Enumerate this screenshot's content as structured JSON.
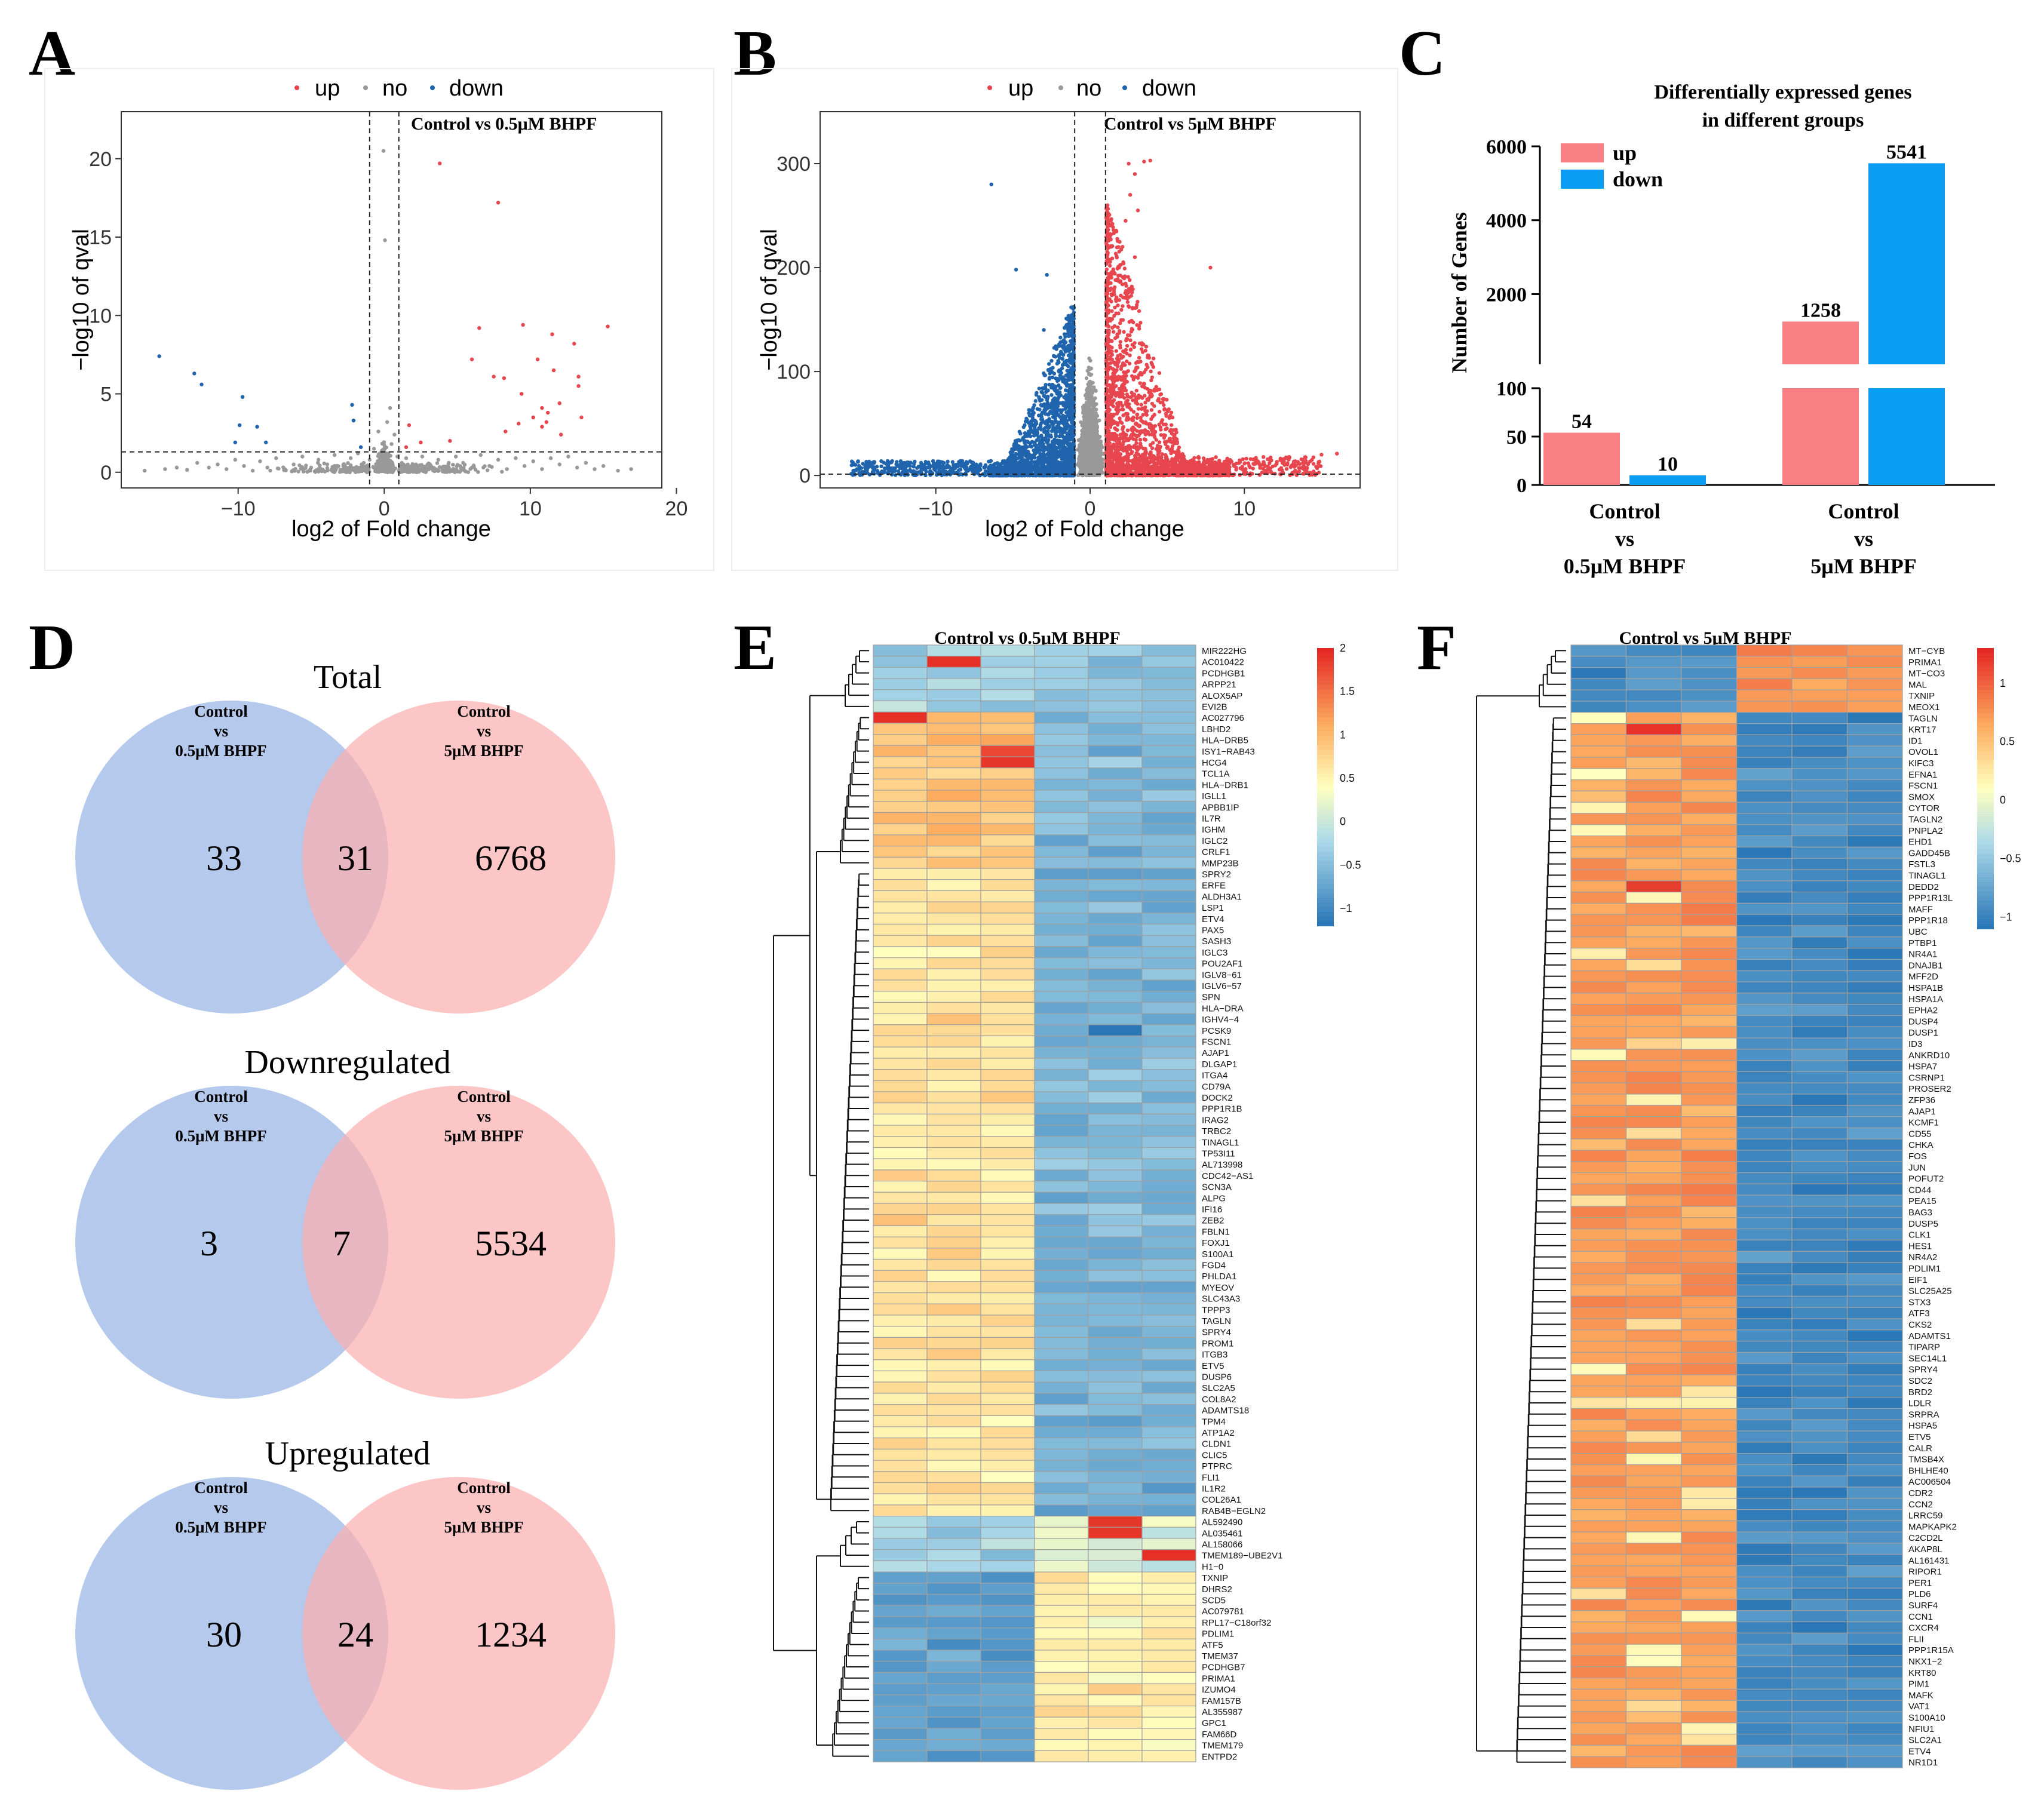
{
  "panel_letters": [
    "A",
    "B",
    "C",
    "D",
    "E",
    "F"
  ],
  "colors": {
    "up": "#e8464f",
    "no": "#999999",
    "down": "#1f64ad",
    "venn_left": "#a4bde6",
    "venn_right": "#fcaeae",
    "bar_up": "#f88084",
    "bar_down": "#0b9cf4"
  },
  "chart_data": [
    {
      "type": "scatter",
      "panel": "A",
      "title": "Control vs 0.5μM BHPF",
      "xlabel": "log2 of Fold change",
      "ylabel": "−log10 of qval",
      "xlim": [
        -18,
        19
      ],
      "ylim": [
        -1,
        23
      ],
      "xticks": [
        "−10",
        "0",
        "10",
        "20"
      ],
      "yticks": [
        "0",
        "5",
        "10",
        "15",
        "20"
      ],
      "thresholds": {
        "x": [
          -1,
          1
        ],
        "y": 1.3
      },
      "legend": [
        "up",
        "no",
        "down"
      ],
      "series": [
        {
          "name": "up",
          "points": [
            [
              3.8,
              19.7
            ],
            [
              7.8,
              17.2
            ],
            [
              15.3,
              9.3
            ],
            [
              9.5,
              9.4
            ],
            [
              11.5,
              8.8
            ],
            [
              6.5,
              9.2
            ],
            [
              13,
              8.2
            ],
            [
              10.5,
              7.2
            ],
            [
              6,
              7.2
            ],
            [
              11.6,
              6.5
            ],
            [
              13.3,
              6.1
            ],
            [
              13.3,
              5.5
            ],
            [
              7.5,
              6.1
            ],
            [
              8.2,
              6
            ],
            [
              9.4,
              5
            ],
            [
              12,
              4.4
            ],
            [
              10.8,
              4.1
            ],
            [
              11.2,
              3.8
            ],
            [
              10.2,
              3.5
            ],
            [
              13.5,
              3.5
            ],
            [
              11.1,
              3.2
            ],
            [
              9.2,
              3.1
            ],
            [
              10.8,
              2.9
            ],
            [
              8.3,
              2.6
            ],
            [
              12.1,
              2.4
            ],
            [
              1.7,
              3
            ],
            [
              2.5,
              1.9
            ],
            [
              4.5,
              2
            ],
            [
              1.5,
              1.6
            ]
          ]
        },
        {
          "name": "down",
          "points": [
            [
              -15.4,
              7.4
            ],
            [
              -13,
              6.3
            ],
            [
              -12.5,
              5.6
            ],
            [
              -9.7,
              4.8
            ],
            [
              -9.9,
              3
            ],
            [
              -8.7,
              2.9
            ],
            [
              -8.1,
              1.9
            ],
            [
              -10.2,
              1.9
            ],
            [
              -2.2,
              4.3
            ],
            [
              -2.1,
              3.3
            ],
            [
              -1.6,
              1.6
            ]
          ]
        },
        {
          "name": "no",
          "points": [
            [
              -16.4,
              0.1
            ],
            [
              -15,
              0.2
            ],
            [
              -14.2,
              0.3
            ],
            [
              -13.5,
              0.15
            ],
            [
              -12.8,
              0.6
            ],
            [
              -12,
              0.3
            ],
            [
              -11.4,
              0.5
            ],
            [
              -10.8,
              0.2
            ],
            [
              -10.2,
              0.8
            ],
            [
              -9.6,
              0.4
            ],
            [
              -9,
              0.1
            ],
            [
              -8.5,
              0.7
            ],
            [
              -8,
              0.3
            ],
            [
              -7.4,
              0.9
            ],
            [
              -6.8,
              0.2
            ],
            [
              -6.2,
              0.5
            ],
            [
              -5.6,
              1
            ],
            [
              -5,
              0.3
            ],
            [
              -4.5,
              0.8
            ],
            [
              -3.9,
              0.5
            ],
            [
              -3.4,
              1.1
            ],
            [
              -2.8,
              0.4
            ],
            [
              -2.3,
              0.9
            ],
            [
              -1.8,
              1.2
            ],
            [
              -1.4,
              0.6
            ],
            [
              -1,
              0.8
            ],
            [
              -0.7,
              1.5
            ],
            [
              -0.4,
              2.6
            ],
            [
              -0.2,
              1
            ],
            [
              0,
              0.5
            ],
            [
              0.2,
              3.2
            ],
            [
              0.4,
              4.1
            ],
            [
              0.5,
              1.8
            ],
            [
              0.7,
              2.4
            ],
            [
              0.9,
              1
            ],
            [
              1.2,
              0.6
            ],
            [
              1.5,
              0.9
            ],
            [
              2,
              0.3
            ],
            [
              2.6,
              1
            ],
            [
              3.1,
              0.5
            ],
            [
              3.7,
              0.8
            ],
            [
              4.3,
              0.2
            ],
            [
              4.9,
              1
            ],
            [
              5.4,
              0.6
            ],
            [
              6,
              0.3
            ],
            [
              6.6,
              1.1
            ],
            [
              7.2,
              0.4
            ],
            [
              7.8,
              0.8
            ],
            [
              8.4,
              0.2
            ],
            [
              9,
              0.9
            ],
            [
              9.6,
              0.4
            ],
            [
              10.2,
              0.7
            ],
            [
              10.8,
              0.2
            ],
            [
              11.4,
              0.9
            ],
            [
              12,
              0.5
            ],
            [
              12.6,
              1
            ],
            [
              13.2,
              0.3
            ],
            [
              13.8,
              0.6
            ],
            [
              14.4,
              0.2
            ],
            [
              15,
              0.4
            ],
            [
              16,
              0.1
            ],
            [
              16.9,
              0.2
            ],
            [
              -0.05,
              20.5
            ],
            [
              0.05,
              14.8
            ]
          ]
        }
      ]
    },
    {
      "type": "scatter",
      "panel": "B",
      "title": "Control  vs 5μM BHPF",
      "xlabel": "log2 of Fold change",
      "ylabel": "−log10 of qval",
      "xlim": [
        -17.5,
        17.5
      ],
      "ylim": [
        -12,
        350
      ],
      "xticks": [
        "−10",
        "0",
        "10"
      ],
      "yticks": [
        "0",
        "100",
        "200",
        "300"
      ],
      "thresholds": {
        "x": [
          -1,
          1
        ],
        "y": 1.3
      },
      "legend": [
        "up",
        "no",
        "down"
      ],
      "summary": "dense clouds of up- and down-regulated genes",
      "series": [
        {
          "name": "up",
          "points": [
            [
              2.5,
              300
            ],
            [
              3.9,
              303
            ],
            [
              3.5,
              302
            ],
            [
              2.9,
              290
            ],
            [
              2.6,
              270
            ],
            [
              3.1,
              255
            ],
            [
              7.8,
              200
            ],
            [
              2.3,
              245
            ],
            [
              2.1,
              220
            ],
            [
              2.9,
              210
            ],
            [
              15,
              20
            ],
            [
              16,
              21
            ],
            [
              13,
              8
            ]
          ]
        },
        {
          "name": "down",
          "points": [
            [
              -6.4,
              280
            ],
            [
              -4.8,
              198
            ],
            [
              -2.8,
              193
            ],
            [
              -14.2,
              12
            ],
            [
              -12.5,
              10
            ],
            [
              -3,
              140
            ]
          ]
        }
      ]
    },
    {
      "type": "bar",
      "panel": "C",
      "title": "Differentially expressed genes in different groups",
      "title_lines": [
        "Differentially expressed genes",
        "in different groups"
      ],
      "ylabel": "Number of Genes",
      "categories": [
        "Control vs 0.5μM BHPF",
        "Control vs 5μM BHPF"
      ],
      "category_lines": [
        [
          "Control",
          "vs",
          "0.5μM BHPF"
        ],
        [
          "Control",
          "vs",
          "5μM BHPF"
        ]
      ],
      "series": [
        {
          "name": "up",
          "values": [
            54,
            1258
          ]
        },
        {
          "name": "down",
          "values": [
            10,
            5541
          ]
        }
      ],
      "value_labels": [
        "54",
        "10",
        "1258",
        "5541"
      ],
      "axis_break": {
        "lower_range": [
          0,
          100
        ],
        "upper_range": [
          100,
          6000
        ]
      },
      "yticks_lower": [
        "0",
        "50",
        "100"
      ],
      "yticks_upper": [
        "2000",
        "4000",
        "6000"
      ]
    },
    {
      "type": "venn",
      "panel": "D",
      "sets": [
        "Control vs 0.5μM BHPF",
        "Control vs 5μM BHPF"
      ],
      "set_label_lines": [
        [
          "Control",
          "vs",
          "0.5μM BHPF"
        ],
        [
          "Control",
          "vs",
          "5μM BHPF"
        ]
      ],
      "diagrams": [
        {
          "title": "Total",
          "left_only": "33",
          "overlap": "31",
          "right_only": "6768"
        },
        {
          "title": "Downregulated",
          "left_only": "3",
          "overlap": "7",
          "right_only": "5534"
        },
        {
          "title": "Upregulated",
          "left_only": "30",
          "overlap": "24",
          "right_only": "1234"
        }
      ]
    },
    {
      "type": "heatmap",
      "panel": "E",
      "title": "Control vs 0.5μM BHPF",
      "columns": 6,
      "colorbar_ticks": [
        "2",
        "1.5",
        "1",
        "0.5",
        "0",
        "−0.5",
        "−1"
      ],
      "colorbar_range": [
        -1.2,
        2
      ],
      "genes": [
        "MIR222HG",
        "AC010422",
        "PCDHGB1",
        "ARPP21",
        "ALOX5AP",
        "EVI2B",
        "AC027796",
        "LBHD2",
        "HLA−DRB5",
        "ISY1−RAB43",
        "HCG4",
        "TCL1A",
        "HLA−DRB1",
        "IGLL1",
        "APBB1IP",
        "IL7R",
        "IGHM",
        "IGLC2",
        "CRLF1",
        "MMP23B",
        "SPRY2",
        "ERFE",
        "ALDH3A1",
        "LSP1",
        "ETV4",
        "PAX5",
        "SASH3",
        "IGLC3",
        "POU2AF1",
        "IGLV8−61",
        "IGLV6−57",
        "SPN",
        "HLA−DRA",
        "IGHV4−4",
        "PCSK9",
        "FSCN1",
        "AJAP1",
        "DLGAP1",
        "ITGA4",
        "CD79A",
        "DOCK2",
        "PPP1R1B",
        "IRAG2",
        "TRBC2",
        "TINAGL1",
        "TP53I11",
        "AL713998",
        "CDC42−AS1",
        "SCN3A",
        "ALPG",
        "IFI16",
        "ZEB2",
        "FBLN1",
        "FOXJ1",
        "S100A1",
        "FGD4",
        "PHLDA1",
        "MYEOV",
        "SLC43A3",
        "TPPP3",
        "TAGLN",
        "SPRY4",
        "PROM1",
        "ITGB3",
        "ETV5",
        "DUSP6",
        "SLC2A5",
        "COL8A2",
        "ADAMTS18",
        "TPM4",
        "ATP1A2",
        "CLDN1",
        "CLIC5",
        "PTPRC",
        "FLI1",
        "IL1R2",
        "COL26A1",
        "RAB4B−EGLN2",
        "AL592490",
        "AL035461",
        "AL158066",
        "TMEM189−UBE2V1",
        "H1−0",
        "TXNIP",
        "DHRS2",
        "SCD5",
        "AC079781",
        "RPL17−C18orf32",
        "PDLIM1",
        "ATF5",
        "TMEM37",
        "PCDHGB7",
        "PRIMA1",
        "IZUMO4",
        "FAM157B",
        "AL355987",
        "GPC1",
        "FAM66D",
        "TMEM179",
        "ENTPD2"
      ]
    },
    {
      "type": "heatmap",
      "panel": "F",
      "title": "Control  vs 5μM BHPF",
      "columns": 6,
      "colorbar_ticks": [
        "1",
        "0.5",
        "0",
        "−0.5",
        "−1"
      ],
      "colorbar_range": [
        -1.1,
        1.3
      ],
      "genes": [
        "MT−CYB",
        "PRIMA1",
        "MT−CO3",
        "MAL",
        "TXNIP",
        "MEOX1",
        "TAGLN",
        "KRT17",
        "ID1",
        "OVOL1",
        "KIFC3",
        "EFNA1",
        "FSCN1",
        "SMOX",
        "CYTOR",
        "TAGLN2",
        "PNPLA2",
        "EHD1",
        "GADD45B",
        "FSTL3",
        "TINAGL1",
        "DEDD2",
        "PPP1R13L",
        "MAFF",
        "PPP1R18",
        "UBC",
        "PTBP1",
        "NR4A1",
        "DNAJB1",
        "MFF2D",
        "HSPA1B",
        "HSPA1A",
        "EPHA2",
        "DUSP4",
        "DUSP1",
        "ID3",
        "ANKRD10",
        "HSPA7",
        "CSRNP1",
        "PROSER2",
        "ZFP36",
        "AJAP1",
        "KCMF1",
        "CD55",
        "CHKA",
        "FOS",
        "JUN",
        "POFUT2",
        "CD44",
        "PEA15",
        "BAG3",
        "DUSP5",
        "CLK1",
        "HES1",
        "NR4A2",
        "PDLIM1",
        "EIF1",
        "SLC25A25",
        "STX3",
        "ATF3",
        "CKS2",
        "ADAMTS1",
        "TIPARP",
        "SEC14L1",
        "SPRY4",
        "SDC2",
        "BRD2",
        "LDLR",
        "SRPRA",
        "HSPA5",
        "ETV5",
        "CALR",
        "TMSB4X",
        "BHLHE40",
        "AC006504",
        "CDR2",
        "CCN2",
        "LRRC59",
        "MAPKAPK2",
        "C2CD2L",
        "AKAP8L",
        "AL161431",
        "RIPOR1",
        "PER1",
        "PLD6",
        "SURF4",
        "CCN1",
        "CXCR4",
        "FLII",
        "PPP1R15A",
        "NKX1−2",
        "KRT80",
        "PIM1",
        "MAFK",
        "VAT1",
        "S100A10",
        "NFIU1",
        "SLC2A1",
        "ETV4",
        "NR1D1"
      ]
    }
  ]
}
